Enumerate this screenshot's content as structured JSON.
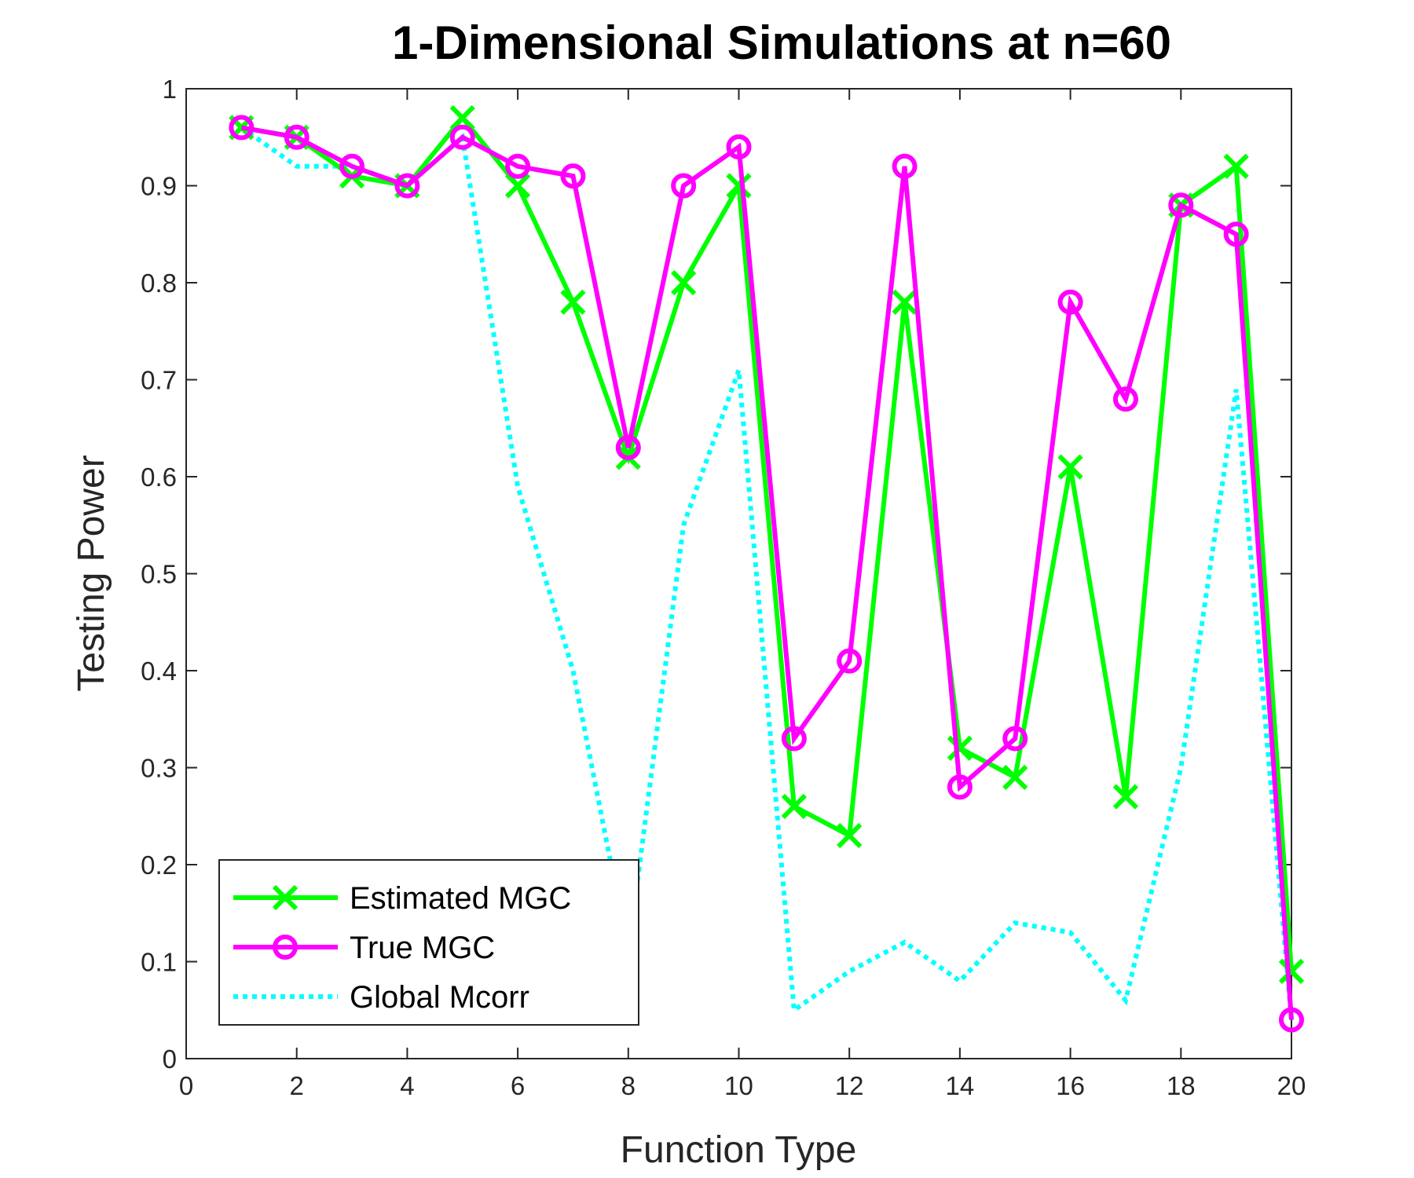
{
  "chart_data": {
    "type": "line",
    "title": "1-Dimensional Simulations at n=60",
    "xlabel": "Function Type",
    "ylabel": "Testing Power",
    "xlim": [
      0,
      20
    ],
    "ylim": [
      0,
      1
    ],
    "xticks": [
      0,
      2,
      4,
      6,
      8,
      10,
      12,
      14,
      16,
      18,
      20
    ],
    "yticks": [
      0,
      0.1,
      0.2,
      0.3,
      0.4,
      0.5,
      0.6,
      0.7,
      0.8,
      0.9,
      1
    ],
    "xtick_labels": [
      "0",
      "2",
      "4",
      "6",
      "8",
      "10",
      "12",
      "14",
      "16",
      "18",
      "20"
    ],
    "ytick_labels": [
      "0",
      "0.1",
      "0.2",
      "0.3",
      "0.4",
      "0.5",
      "0.6",
      "0.7",
      "0.8",
      "0.9",
      "1"
    ],
    "grid": false,
    "legend_position": "bottom-left",
    "x": [
      1,
      2,
      3,
      4,
      5,
      6,
      7,
      8,
      9,
      10,
      11,
      12,
      13,
      14,
      15,
      16,
      17,
      18,
      19,
      20
    ],
    "series": [
      {
        "name": "Estimated MGC",
        "color": "#00ff00",
        "marker": "x",
        "line_style": "solid",
        "values": [
          0.96,
          0.95,
          0.91,
          0.9,
          0.97,
          0.9,
          0.78,
          0.62,
          0.8,
          0.9,
          0.26,
          0.23,
          0.78,
          0.32,
          0.29,
          0.61,
          0.27,
          0.88,
          0.92,
          0.09
        ]
      },
      {
        "name": "True MGC",
        "color": "#ff00ff",
        "marker": "o",
        "line_style": "solid",
        "values": [
          0.96,
          0.95,
          0.92,
          0.9,
          0.95,
          0.92,
          0.91,
          0.63,
          0.9,
          0.94,
          0.33,
          0.41,
          0.92,
          0.28,
          0.33,
          0.78,
          0.68,
          0.88,
          0.85,
          0.04
        ]
      },
      {
        "name": "Global Mcorr",
        "color": "#00ffff",
        "marker": "none",
        "line_style": "dotted",
        "values": [
          0.96,
          0.92,
          0.92,
          0.9,
          0.95,
          0.59,
          0.4,
          0.11,
          0.55,
          0.71,
          0.05,
          0.09,
          0.12,
          0.08,
          0.14,
          0.13,
          0.06,
          0.3,
          0.69,
          0.04
        ]
      }
    ]
  }
}
